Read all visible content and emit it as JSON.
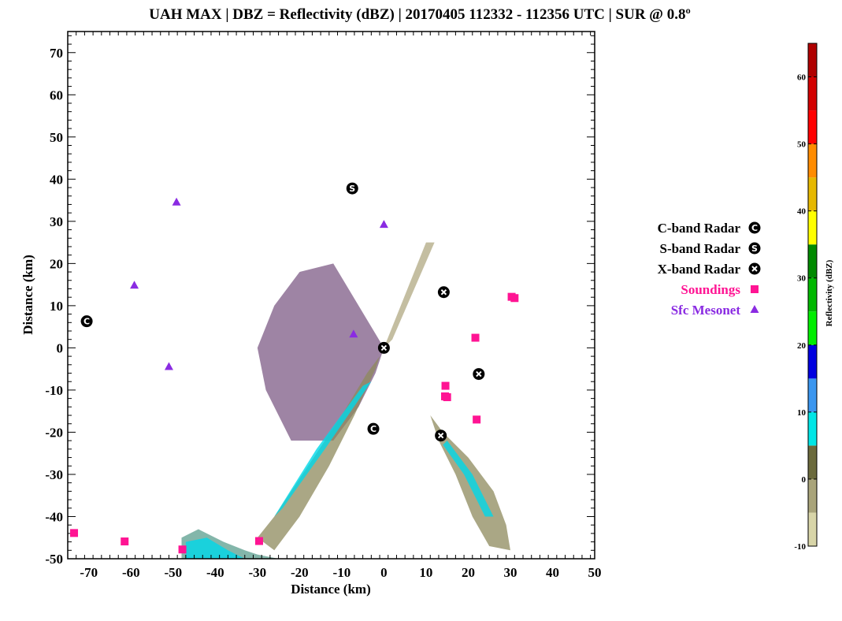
{
  "chart_data": {
    "type": "scatter",
    "title": "UAH MAX | DBZ = Reflectivity (dBZ) | 20170405 112332 - 112356 UTC | SUR @ 0.8º",
    "xlabel": "Distance (km)",
    "ylabel": "Distance (km)",
    "xlim": [
      -75,
      50
    ],
    "ylim": [
      -50,
      75
    ],
    "x_ticks": [
      -70,
      -60,
      -50,
      -40,
      -30,
      -20,
      -10,
      0,
      10,
      20,
      30,
      40,
      50
    ],
    "y_ticks": [
      -50,
      -40,
      -30,
      -20,
      -10,
      0,
      10,
      20,
      30,
      40,
      50,
      60,
      70
    ],
    "series": [
      {
        "name": "C-band Radar",
        "marker": "C",
        "color": "#000000",
        "points": [
          [
            -70.5,
            6.3
          ],
          [
            -2.5,
            -19.2
          ]
        ]
      },
      {
        "name": "S-band Radar",
        "marker": "S",
        "color": "#000000",
        "points": [
          [
            -7.5,
            37.8
          ]
        ]
      },
      {
        "name": "X-band Radar",
        "marker": "X",
        "color": "#000000",
        "points": [
          [
            0,
            0
          ],
          [
            14.2,
            13.2
          ],
          [
            22.5,
            -6.2
          ],
          [
            13.5,
            -20.8
          ]
        ]
      },
      {
        "name": "Soundings",
        "marker": "square",
        "color": "#ff1493",
        "points": [
          [
            30.3,
            12.1
          ],
          [
            31.0,
            11.8
          ],
          [
            21.7,
            2.4
          ],
          [
            14.6,
            -9.0
          ],
          [
            14.5,
            -11.5
          ],
          [
            15.0,
            -11.7
          ],
          [
            22.0,
            -17.0
          ],
          [
            -73.5,
            -43.9
          ],
          [
            -61.5,
            -45.9
          ],
          [
            -47.8,
            -47.8
          ],
          [
            -29.6,
            -45.8
          ]
        ]
      },
      {
        "name": "Sfc Mesonet",
        "marker": "triangle",
        "color": "#8a2be2",
        "points": [
          [
            -49.2,
            34.5
          ],
          [
            -59.2,
            14.8
          ],
          [
            -51.0,
            -4.5
          ],
          [
            0,
            29.2
          ],
          [
            -7.2,
            3.2
          ]
        ]
      }
    ],
    "reflectivity_regions": [
      {
        "name": "west-sector",
        "polygon": [
          [
            0,
            0
          ],
          [
            -12,
            20
          ],
          [
            -20,
            18
          ],
          [
            -26,
            10
          ],
          [
            -30,
            0
          ],
          [
            -28,
            -10
          ],
          [
            -22,
            -22
          ],
          [
            -12,
            -22
          ],
          [
            -6,
            -14
          ],
          [
            -2,
            -6
          ]
        ]
      },
      {
        "name": "sw-band",
        "polygon": [
          [
            -1,
            -2
          ],
          [
            -4,
            -6
          ],
          [
            -10,
            -16
          ],
          [
            -18,
            -28
          ],
          [
            -26,
            -40
          ],
          [
            -30,
            -45
          ],
          [
            -26,
            -48
          ],
          [
            -20,
            -40
          ],
          [
            -13,
            -28
          ],
          [
            -7,
            -16
          ],
          [
            -2,
            -5
          ]
        ]
      },
      {
        "name": "se-band",
        "polygon": [
          [
            11,
            -16
          ],
          [
            14,
            -20
          ],
          [
            20,
            -26
          ],
          [
            26,
            -34
          ],
          [
            29,
            -42
          ],
          [
            30,
            -48
          ],
          [
            25,
            -47
          ],
          [
            21,
            -40
          ],
          [
            17,
            -30
          ],
          [
            13,
            -22
          ]
        ]
      },
      {
        "name": "south-edge",
        "polygon": [
          [
            -48,
            -50
          ],
          [
            -48,
            -45
          ],
          [
            -44,
            -43
          ],
          [
            -38,
            -46
          ],
          [
            -33,
            -48
          ],
          [
            -30,
            -49
          ],
          [
            -25,
            -50
          ]
        ]
      },
      {
        "name": "ne-spoke",
        "polygon": [
          [
            0,
            0
          ],
          [
            10,
            25
          ],
          [
            12,
            25
          ],
          [
            2,
            2
          ]
        ]
      }
    ],
    "colorbar": {
      "label": "Reflectivity (dBZ)",
      "min": -10,
      "max": 65,
      "step": 5,
      "ticks": [
        -10,
        0,
        10,
        20,
        30,
        40,
        50,
        60
      ],
      "colors": [
        "#d8d5a8",
        "#a9a47a",
        "#6b6a3c",
        "#00e6e6",
        "#3a96ef",
        "#0000e0",
        "#00ee00",
        "#00b800",
        "#008a00",
        "#ffff00",
        "#e6b800",
        "#ff8c00",
        "#ff0000",
        "#d30000",
        "#b00000"
      ]
    }
  }
}
